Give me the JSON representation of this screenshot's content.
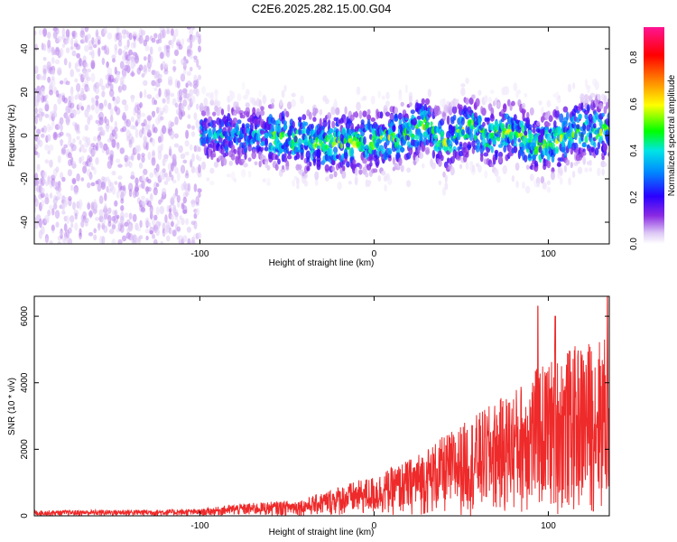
{
  "title": "C2E6.2025.282.15.00.G04",
  "chart_data": [
    {
      "type": "heatmap",
      "xlabel": "Height of straight line (km)",
      "ylabel": "Frequency (Hz)",
      "xlim": [
        -195,
        135
      ],
      "ylim": [
        -50,
        50
      ],
      "xticks": [
        -100,
        0,
        100
      ],
      "yticks": [
        -40,
        -20,
        0,
        20,
        40
      ],
      "colorbar": {
        "label": "Normalized spectral amplitude",
        "range": [
          0.0,
          0.93
        ],
        "ticks": [
          "0.0",
          "0.2",
          "0.4",
          "0.6",
          "0.8"
        ],
        "tick_values": [
          0.0,
          0.2,
          0.4,
          0.6,
          0.8
        ],
        "colormap": [
          "#ffffff",
          "#ddc8f5",
          "#8a2be2",
          "#2a00ff",
          "#0088ff",
          "#00e5e5",
          "#00ff00",
          "#ffff00",
          "#ff8800",
          "#ff0000",
          "#ff1493"
        ]
      },
      "ridge": [
        {
          "x": -100,
          "y": 0
        },
        {
          "x": -60,
          "y": 0
        },
        {
          "x": -30,
          "y": -4
        },
        {
          "x": -10,
          "y": -3
        },
        {
          "x": 0,
          "y": -2
        },
        {
          "x": 10,
          "y": -1
        },
        {
          "x": 18,
          "y": 0
        },
        {
          "x": 25,
          "y": 3
        },
        {
          "x": 30,
          "y": 6
        },
        {
          "x": 40,
          "y": -4
        },
        {
          "x": 55,
          "y": 5
        },
        {
          "x": 65,
          "y": -1
        },
        {
          "x": 80,
          "y": 2
        },
        {
          "x": 95,
          "y": -6
        },
        {
          "x": 110,
          "y": 0
        },
        {
          "x": 120,
          "y": 3
        },
        {
          "x": 135,
          "y": 2
        }
      ]
    },
    {
      "type": "line",
      "xlabel": "Height of straight line (km)",
      "ylabel": "SNR (10 * v/v)",
      "xlim": [
        -195,
        135
      ],
      "ylim": [
        0,
        6600
      ],
      "xticks": [
        -100,
        0,
        100
      ],
      "yticks": [
        0,
        2000,
        4000,
        6000
      ],
      "color": "#ee2a2a",
      "envelope": [
        {
          "x": -195,
          "y": 160
        },
        {
          "x": -150,
          "y": 180
        },
        {
          "x": -100,
          "y": 200
        },
        {
          "x": -80,
          "y": 350
        },
        {
          "x": -60,
          "y": 420
        },
        {
          "x": -40,
          "y": 500
        },
        {
          "x": -20,
          "y": 900
        },
        {
          "x": 0,
          "y": 1200
        },
        {
          "x": 20,
          "y": 1700
        },
        {
          "x": 40,
          "y": 2400
        },
        {
          "x": 60,
          "y": 3100
        },
        {
          "x": 80,
          "y": 3800
        },
        {
          "x": 90,
          "y": 4300
        },
        {
          "x": 100,
          "y": 4700
        },
        {
          "x": 110,
          "y": 5000
        },
        {
          "x": 120,
          "y": 5200
        },
        {
          "x": 135,
          "y": 5500
        }
      ],
      "peaks": [
        {
          "x": 94,
          "y": 6300
        },
        {
          "x": 104,
          "y": 6000
        },
        {
          "x": 134,
          "y": 6600
        }
      ]
    }
  ]
}
